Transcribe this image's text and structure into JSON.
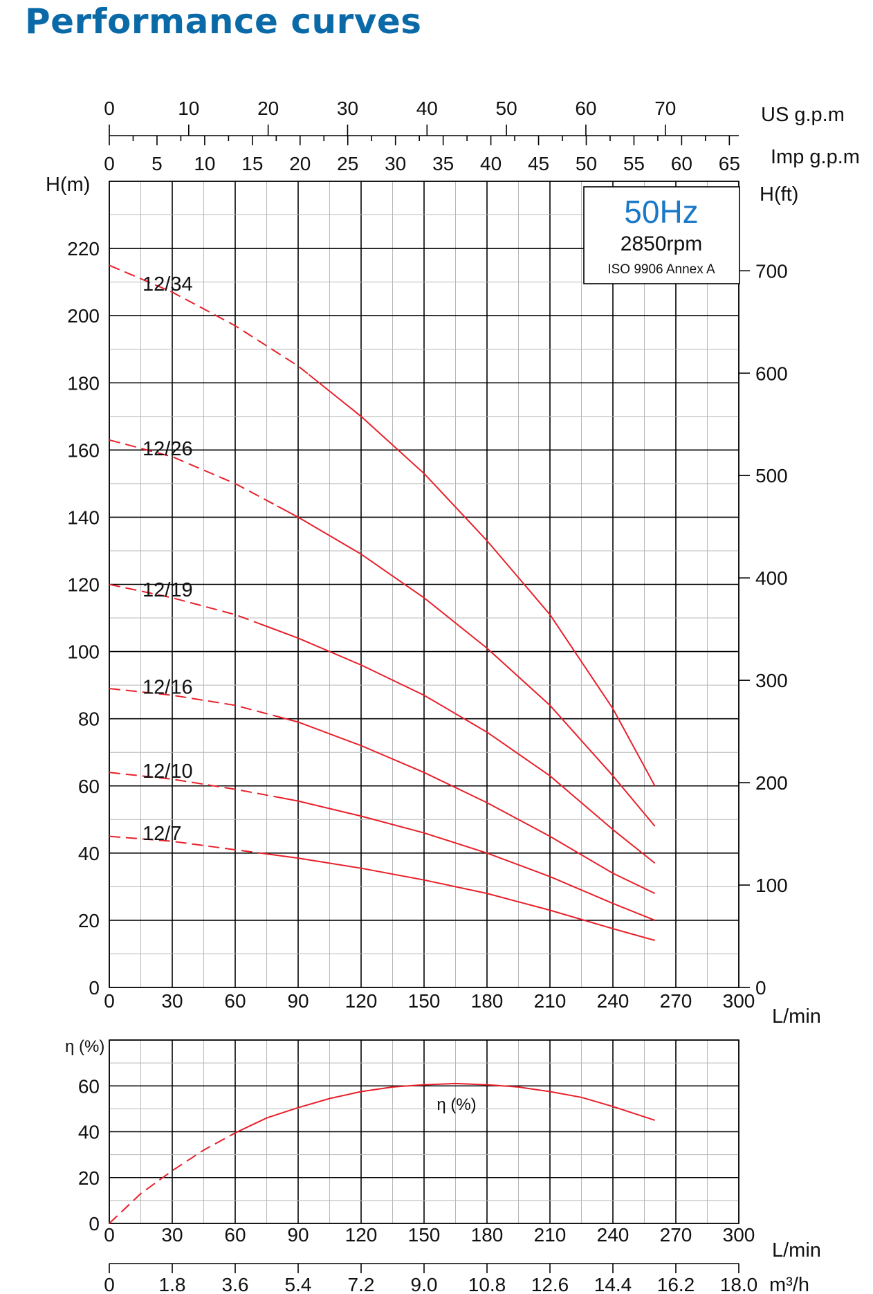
{
  "header": {
    "title": "Performance curves"
  },
  "info_box": {
    "frequency": "50Hz",
    "speed": "2850rpm",
    "standard": "ISO 9906 Annex A"
  },
  "colors": {
    "title": "#0a6aa8",
    "frequency": "#1a78c8",
    "curves": "#e8202a"
  },
  "chart_data": [
    {
      "type": "line",
      "title": "",
      "xlabel": "L/min",
      "ylabel": "H(m)",
      "ylabel_right": "H(ft)",
      "xlim": [
        0,
        300
      ],
      "ylim": [
        0,
        240
      ],
      "ylim_right_ft": [
        0,
        787.4
      ],
      "x_ticks": [
        "0",
        "30",
        "60",
        "90",
        "120",
        "150",
        "180",
        "210",
        "240",
        "270",
        "300"
      ],
      "y_ticks": [
        "0",
        "20",
        "40",
        "60",
        "80",
        "100",
        "120",
        "140",
        "160",
        "180",
        "200",
        "220"
      ],
      "y_ticks_right": [
        "0",
        "100",
        "200",
        "300",
        "400",
        "500",
        "600",
        "700"
      ],
      "top_axes": [
        {
          "label": "US g.p.m",
          "ticks": [
            "0",
            "10",
            "20",
            "30",
            "40",
            "50",
            "60",
            "70"
          ]
        },
        {
          "label": "Imp g.p.m",
          "ticks": [
            "0",
            "5",
            "10",
            "15",
            "20",
            "25",
            "30",
            "35",
            "40",
            "45",
            "50",
            "55",
            "60",
            "65"
          ]
        }
      ],
      "grid": true,
      "dashed_until_x": [
        95,
        80,
        70,
        80,
        80,
        75
      ],
      "series": [
        {
          "name": "12/34",
          "x": [
            0,
            30,
            60,
            90,
            120,
            150,
            180,
            210,
            240,
            260
          ],
          "y": [
            215,
            207,
            197,
            185,
            170,
            153,
            133,
            111,
            83,
            60
          ]
        },
        {
          "name": "12/26",
          "x": [
            0,
            30,
            60,
            90,
            120,
            150,
            180,
            210,
            240,
            260
          ],
          "y": [
            163,
            158,
            150,
            140,
            129,
            116,
            101,
            84,
            63,
            48
          ]
        },
        {
          "name": "12/19",
          "x": [
            0,
            30,
            60,
            90,
            120,
            150,
            180,
            210,
            240,
            260
          ],
          "y": [
            120,
            116,
            111,
            104,
            96,
            87,
            76,
            63,
            47,
            37
          ]
        },
        {
          "name": "12/16",
          "x": [
            0,
            30,
            60,
            90,
            120,
            150,
            180,
            210,
            240,
            260
          ],
          "y": [
            89,
            87,
            84,
            79,
            72,
            64,
            55,
            45,
            34,
            28
          ]
        },
        {
          "name": "12/10",
          "x": [
            0,
            30,
            60,
            90,
            120,
            150,
            180,
            210,
            240,
            260
          ],
          "y": [
            64,
            62,
            59,
            55.5,
            51,
            46,
            40,
            33,
            25,
            20
          ]
        },
        {
          "name": "12/7",
          "x": [
            0,
            30,
            60,
            90,
            120,
            150,
            180,
            210,
            240,
            260
          ],
          "y": [
            45,
            43.5,
            41,
            38.5,
            35.5,
            32,
            28,
            23,
            17.5,
            14
          ]
        }
      ]
    },
    {
      "type": "line",
      "title": "",
      "xlabel": "L/min",
      "ylabel": "η (%)",
      "xlim": [
        0,
        300
      ],
      "ylim": [
        0,
        80
      ],
      "x_ticks": [
        "0",
        "30",
        "60",
        "90",
        "120",
        "150",
        "180",
        "210",
        "240",
        "270",
        "300"
      ],
      "y_ticks": [
        "0",
        "20",
        "40",
        "60"
      ],
      "bottom_axis": {
        "label": "m³/h",
        "ticks": [
          "0",
          "1.8",
          "3.6",
          "5.4",
          "7.2",
          "9.0",
          "10.8",
          "12.6",
          "14.4",
          "16.2",
          "18.0"
        ]
      },
      "grid": true,
      "dashed_until_x": 60,
      "series": [
        {
          "name": "η (%)",
          "x": [
            0,
            15,
            30,
            45,
            60,
            75,
            90,
            105,
            120,
            135,
            150,
            165,
            180,
            195,
            210,
            225,
            240,
            260
          ],
          "y": [
            0,
            13,
            23,
            32,
            39.5,
            46,
            50.5,
            54.5,
            57.5,
            59.5,
            60.5,
            61,
            60.5,
            59.5,
            57.5,
            55,
            51,
            45
          ]
        }
      ]
    }
  ]
}
